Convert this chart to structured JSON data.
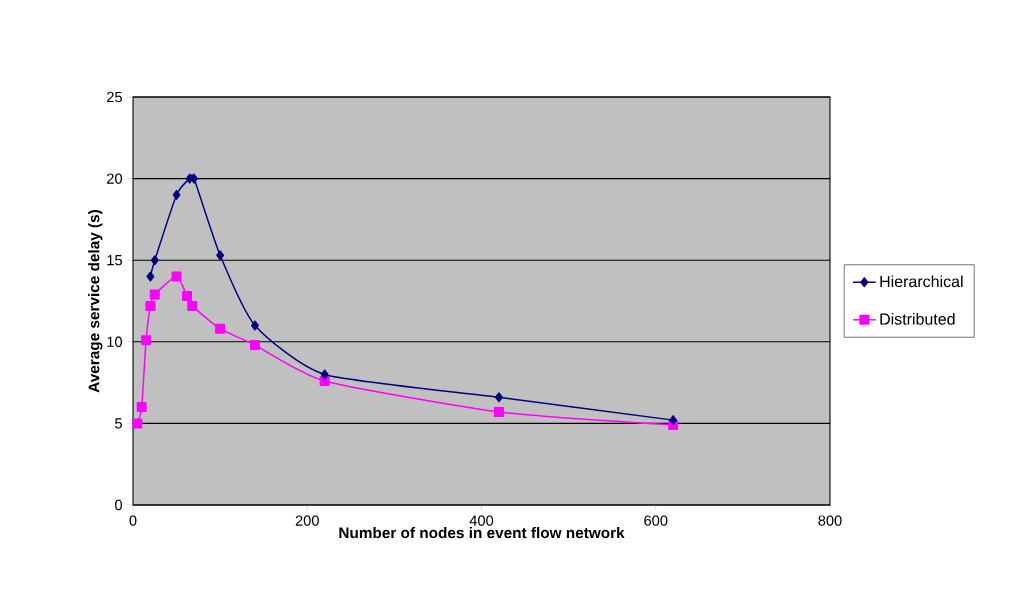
{
  "chart_data": {
    "type": "line",
    "xlabel": "Number of nodes in event flow network",
    "ylabel": "Average service delay (s)",
    "xlim": [
      0,
      800
    ],
    "xticks": [
      0,
      200,
      400,
      600,
      800
    ],
    "ylim": [
      0,
      25
    ],
    "yticks": [
      0,
      5,
      10,
      15,
      20,
      25
    ],
    "grid": "y",
    "legend": "right",
    "series": [
      {
        "name": "Hierarchical",
        "color": "#000080",
        "marker": "diamond",
        "x": [
          20,
          25,
          50,
          65,
          70,
          100,
          140,
          220,
          420,
          620
        ],
        "values": [
          14,
          15,
          19,
          20,
          20,
          15.3,
          11,
          8,
          6.6,
          5.2
        ]
      },
      {
        "name": "Distributed",
        "color": "#ff00ff",
        "marker": "square",
        "x": [
          5,
          10,
          15,
          20,
          25,
          50,
          62,
          68,
          100,
          140,
          220,
          420,
          620
        ],
        "values": [
          5,
          6,
          10.1,
          12.2,
          12.9,
          14,
          12.8,
          12.2,
          10.8,
          9.8,
          7.6,
          5.7,
          4.9
        ]
      }
    ]
  }
}
